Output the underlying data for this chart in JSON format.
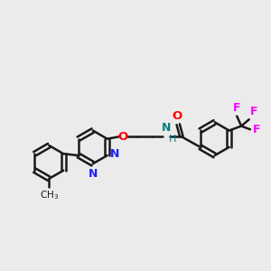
{
  "bg_color": "#ebebeb",
  "bond_color": "#1a1a1a",
  "N_color": "#2020ff",
  "O_color": "#ff0000",
  "F_color": "#ff00ff",
  "NH_color": "#008080",
  "figsize": [
    3.0,
    3.0
  ],
  "dpi": 100,
  "xlim": [
    0,
    12
  ],
  "ylim": [
    0,
    12
  ]
}
